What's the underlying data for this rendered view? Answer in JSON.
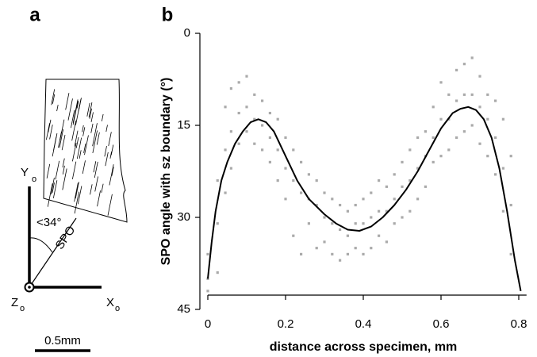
{
  "panel_a": {
    "label": "a",
    "y_axis": "Y",
    "y_sub": "o",
    "angle": "<34°",
    "spo": "SPO",
    "z_axis": "Z",
    "z_sub": "o",
    "x_axis": "X",
    "x_sub": "o",
    "scale": "0.5mm"
  },
  "chart_data": {
    "type": "scatter",
    "panel_label": "b",
    "xlabel": "distance across specimen, mm",
    "ylabel": "SPO angle with sz boundary (°)",
    "xlim": [
      0,
      0.82
    ],
    "ylim": [
      0,
      45
    ],
    "y_inverted": true,
    "xticks": [
      0,
      0.2,
      0.4,
      0.6,
      0.8
    ],
    "yticks": [
      0,
      15,
      30,
      45
    ],
    "series": [
      {
        "type": "scatter",
        "color": "#aaaaaa",
        "x": [
          0,
          0,
          0,
          0.025,
          0.025,
          0.025,
          0.045,
          0.045,
          0.045,
          0.06,
          0.06,
          0.06,
          0.08,
          0.08,
          0.08,
          0.1,
          0.1,
          0.1,
          0.12,
          0.12,
          0.12,
          0.14,
          0.14,
          0.14,
          0.16,
          0.16,
          0.16,
          0.18,
          0.18,
          0.18,
          0.2,
          0.2,
          0.2,
          0.22,
          0.22,
          0.22,
          0.24,
          0.24,
          0.24,
          0.26,
          0.26,
          0.26,
          0.28,
          0.28,
          0.28,
          0.3,
          0.3,
          0.3,
          0.32,
          0.32,
          0.32,
          0.34,
          0.34,
          0.34,
          0.36,
          0.36,
          0.36,
          0.38,
          0.38,
          0.38,
          0.4,
          0.4,
          0.4,
          0.42,
          0.42,
          0.42,
          0.44,
          0.44,
          0.44,
          0.46,
          0.46,
          0.46,
          0.48,
          0.48,
          0.48,
          0.5,
          0.5,
          0.5,
          0.52,
          0.52,
          0.52,
          0.54,
          0.54,
          0.54,
          0.56,
          0.56,
          0.56,
          0.58,
          0.58,
          0.58,
          0.6,
          0.6,
          0.6,
          0.62,
          0.62,
          0.62,
          0.64,
          0.64,
          0.64,
          0.66,
          0.66,
          0.66,
          0.68,
          0.68,
          0.68,
          0.7,
          0.7,
          0.7,
          0.72,
          0.72,
          0.72,
          0.74,
          0.74,
          0.74,
          0.76,
          0.76,
          0.76,
          0.78,
          0.78,
          0.78
        ],
        "y": [
          36,
          40,
          42,
          24,
          31,
          39,
          12,
          19,
          26,
          9,
          16,
          22,
          8,
          13,
          18,
          7,
          12,
          16,
          10,
          14,
          18,
          11,
          15,
          19,
          13,
          17,
          21,
          14,
          19,
          24,
          17,
          22,
          27,
          19,
          24,
          33,
          21,
          26,
          36,
          23,
          27,
          31,
          24,
          28,
          35,
          26,
          30,
          34,
          27,
          31,
          36,
          28,
          32,
          37,
          29,
          33,
          36,
          28,
          31,
          35,
          27,
          31,
          36,
          26,
          30,
          35,
          24,
          29,
          33,
          25,
          29,
          34,
          23,
          27,
          31,
          21,
          25,
          30,
          19,
          24,
          29,
          17,
          22,
          27,
          16,
          20,
          25,
          12,
          17,
          21,
          8,
          14,
          20,
          10,
          14,
          19,
          6,
          11,
          17,
          5,
          10,
          16,
          4,
          10,
          15,
          7,
          12,
          18,
          10,
          14,
          20,
          11,
          17,
          23,
          14,
          22,
          29,
          20,
          28,
          36
        ]
      },
      {
        "type": "line",
        "color": "#000000",
        "x": [
          0,
          0.01,
          0.02,
          0.035,
          0.05,
          0.07,
          0.09,
          0.11,
          0.13,
          0.15,
          0.17,
          0.2,
          0.23,
          0.26,
          0.3,
          0.33,
          0.36,
          0.39,
          0.42,
          0.45,
          0.48,
          0.51,
          0.54,
          0.57,
          0.6,
          0.63,
          0.65,
          0.67,
          0.69,
          0.71,
          0.73,
          0.75,
          0.77,
          0.79,
          0.805
        ],
        "y": [
          40,
          34,
          29,
          24,
          21,
          18,
          16,
          14.5,
          14,
          14.5,
          16,
          20,
          24,
          27,
          29.5,
          31,
          32,
          32.2,
          31.5,
          30,
          28,
          25.5,
          22.5,
          19,
          15.5,
          13,
          12.3,
          12,
          12.5,
          14,
          17,
          22,
          29,
          37,
          42
        ]
      }
    ]
  }
}
